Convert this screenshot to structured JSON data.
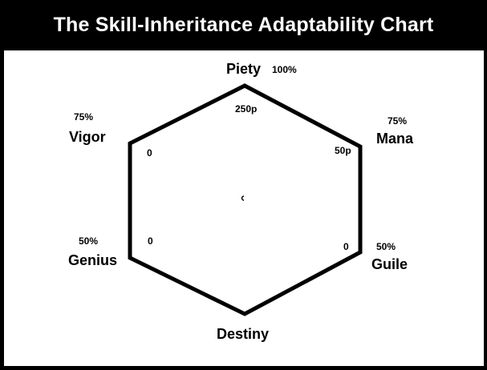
{
  "title": "The Skill-Inheritance Adaptability Chart",
  "stats": {
    "piety": {
      "name": "Piety",
      "percent": "100%",
      "value": "250p"
    },
    "mana": {
      "name": "Mana",
      "percent": "75%",
      "value": "50p"
    },
    "guile": {
      "name": "Guile",
      "percent": "50%",
      "value": "0"
    },
    "destiny": {
      "name": "Destiny",
      "percent": "",
      "value": ""
    },
    "genius": {
      "name": "Genius",
      "percent": "50%",
      "value": "0"
    },
    "vigor": {
      "name": "Vigor",
      "percent": "75%",
      "value": "0"
    }
  },
  "colors": {
    "background": "#ffffff",
    "ink": "#000000",
    "title_text": "#ffffff"
  }
}
